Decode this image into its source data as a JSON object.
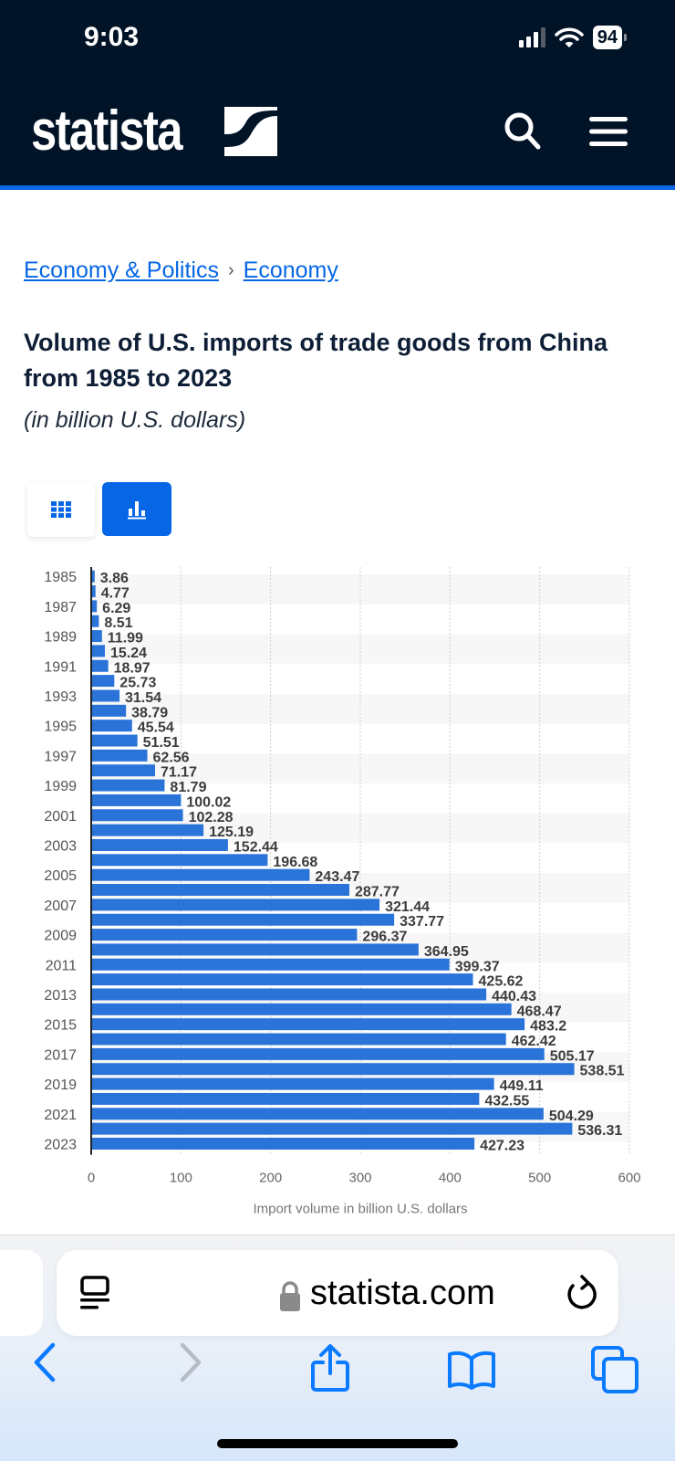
{
  "status_bar": {
    "time": "9:03",
    "battery": "94",
    "icons": [
      "signal-icon",
      "wifi-icon",
      "battery-icon"
    ]
  },
  "header": {
    "logo_text": "statista",
    "icons": [
      "search-icon",
      "menu-icon"
    ]
  },
  "breadcrumb": [
    {
      "label": "Economy & Politics"
    },
    {
      "label": "Economy"
    }
  ],
  "breadcrumb_separator": "›",
  "page": {
    "title": "Volume of U.S. imports of trade goods from China from 1985 to 2023",
    "subtitle": "(in billion U.S. dollars)"
  },
  "view_toggle": {
    "options": [
      "table-view",
      "chart-view"
    ],
    "active": "chart-view"
  },
  "colors": {
    "brand_dark": "#001327",
    "accent": "#0666e5",
    "bar": "#2a74d9"
  },
  "chart_data": {
    "type": "bar",
    "orientation": "horizontal",
    "title": "Volume of U.S. imports of trade goods from China from 1985 to 2023",
    "xlabel": "Import volume in billion U.S. dollars",
    "ylabel": "",
    "xlim": [
      0,
      600
    ],
    "x_ticks": [
      0,
      100,
      200,
      300,
      400,
      500,
      600
    ],
    "grid": true,
    "categories": [
      "1985",
      "1986",
      "1987",
      "1988",
      "1989",
      "1990",
      "1991",
      "1992",
      "1993",
      "1994",
      "1995",
      "1996",
      "1997",
      "1998",
      "1999",
      "2000",
      "2001",
      "2002",
      "2003",
      "2004",
      "2005",
      "2006",
      "2007",
      "2008",
      "2009",
      "2010",
      "2011",
      "2012",
      "2013",
      "2014",
      "2015",
      "2016",
      "2017",
      "2018",
      "2019",
      "2020",
      "2021",
      "2022",
      "2023"
    ],
    "category_labels_shown": [
      "1985",
      "1987",
      "1989",
      "1991",
      "1993",
      "1995",
      "1997",
      "1999",
      "2001",
      "2003",
      "2005",
      "2007",
      "2009",
      "2011",
      "2013",
      "2015",
      "2017",
      "2019",
      "2021",
      "2023"
    ],
    "values": [
      3.86,
      4.77,
      6.29,
      8.51,
      11.99,
      15.24,
      18.97,
      25.73,
      31.54,
      38.79,
      45.54,
      51.51,
      62.56,
      71.17,
      81.79,
      100.02,
      102.28,
      125.19,
      152.44,
      196.68,
      243.47,
      287.77,
      321.44,
      337.77,
      296.37,
      364.95,
      399.37,
      425.62,
      440.43,
      468.47,
      483.2,
      462.42,
      505.17,
      538.51,
      449.11,
      432.55,
      504.29,
      536.31,
      427.23
    ],
    "value_labels": [
      "3.86",
      "4.77",
      "6.29",
      "8.51",
      "11.99",
      "15.24",
      "18.97",
      "25.73",
      "31.54",
      "38.79",
      "45.54",
      "51.51",
      "62.56",
      "71.17",
      "81.79",
      "100.02",
      "102.28",
      "125.19",
      "152.44",
      "196.68",
      "243.47",
      "287.77",
      "321.44",
      "337.77",
      "296.37",
      "364.95",
      "399.37",
      "425.62",
      "440.43",
      "468.47",
      "483.2",
      "462.42",
      "505.17",
      "538.51",
      "449.11",
      "432.55",
      "504.29",
      "536.31",
      "427.23"
    ]
  },
  "browser": {
    "url": "statista.com",
    "icons": [
      "reader-icon",
      "lock-icon",
      "reload-icon",
      "back-icon",
      "forward-icon",
      "share-icon",
      "bookmarks-icon",
      "tabs-icon"
    ]
  }
}
